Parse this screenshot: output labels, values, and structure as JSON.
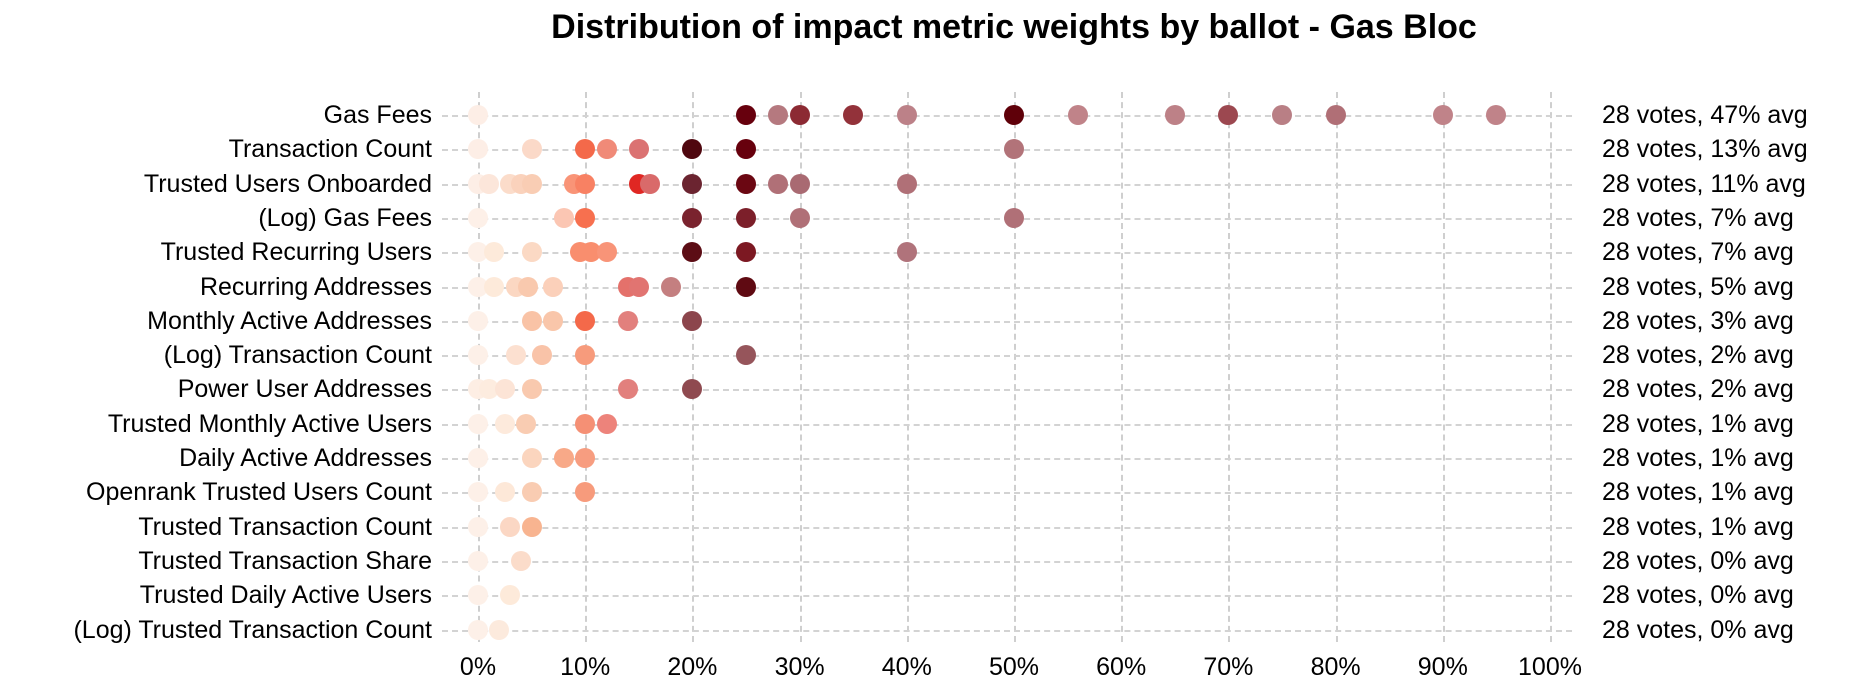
{
  "title": "Distribution of impact metric weights by ballot - Gas Bloc",
  "chart_data": {
    "type": "scatter",
    "variant": "dot-strip-plot",
    "title": "Distribution of impact metric weights by ballot - Gas Bloc",
    "xlabel": "",
    "ylabel": "",
    "x_axis": {
      "min": 0,
      "max": 100,
      "unit": "%",
      "ticks": [
        "0%",
        "10%",
        "20%",
        "30%",
        "40%",
        "50%",
        "60%",
        "70%",
        "80%",
        "90%",
        "100%"
      ]
    },
    "grid": true,
    "legend": false,
    "color_meaning": "darker red = more overlapping ballots / higher stacked weight",
    "rows": [
      {
        "label": "Gas Fees",
        "votes": 28,
        "avg_pct": 47,
        "annotation": "28 votes, 47% avg",
        "dots": [
          {
            "x": 0,
            "color": "#fdeee6"
          },
          {
            "x": 25,
            "color": "#67000d"
          },
          {
            "x": 28,
            "color": "#b5797f"
          },
          {
            "x": 30,
            "color": "#8c2a33"
          },
          {
            "x": 35,
            "color": "#93323a"
          },
          {
            "x": 40,
            "color": "#bc8188"
          },
          {
            "x": 50,
            "color": "#5f0009"
          },
          {
            "x": 56,
            "color": "#c08389"
          },
          {
            "x": 65,
            "color": "#bd8187"
          },
          {
            "x": 70,
            "color": "#9c4850"
          },
          {
            "x": 75,
            "color": "#b97f85"
          },
          {
            "x": 80,
            "color": "#b06f76"
          },
          {
            "x": 90,
            "color": "#c08389"
          },
          {
            "x": 95,
            "color": "#c08389"
          }
        ]
      },
      {
        "label": "Transaction Count",
        "votes": 28,
        "avg_pct": 13,
        "annotation": "28 votes, 13% avg",
        "dots": [
          {
            "x": 0,
            "color": "#fdeee6"
          },
          {
            "x": 5,
            "color": "#fbd9c8"
          },
          {
            "x": 10,
            "color": "#f4694a"
          },
          {
            "x": 12,
            "color": "#f08a78"
          },
          {
            "x": 15,
            "color": "#db7272"
          },
          {
            "x": 20,
            "color": "#4f070f"
          },
          {
            "x": 25,
            "color": "#67000d"
          },
          {
            "x": 50,
            "color": "#b27379"
          }
        ]
      },
      {
        "label": "Trusted Users Onboarded",
        "votes": 28,
        "avg_pct": 11,
        "annotation": "28 votes, 11% avg",
        "dots": [
          {
            "x": 0,
            "color": "#fdeee6"
          },
          {
            "x": 1,
            "color": "#fce6da"
          },
          {
            "x": 3,
            "color": "#fbdcca"
          },
          {
            "x": 4,
            "color": "#fad2bc"
          },
          {
            "x": 5,
            "color": "#f9cdb4"
          },
          {
            "x": 9,
            "color": "#f99477"
          },
          {
            "x": 10,
            "color": "#f88163"
          },
          {
            "x": 15,
            "color": "#e02723"
          },
          {
            "x": 16,
            "color": "#d96a6a"
          },
          {
            "x": 20,
            "color": "#6b2430"
          },
          {
            "x": 25,
            "color": "#6b0712"
          },
          {
            "x": 28,
            "color": "#b07077"
          },
          {
            "x": 30,
            "color": "#a96a72"
          },
          {
            "x": 40,
            "color": "#b07077"
          }
        ]
      },
      {
        "label": "(Log) Gas Fees",
        "votes": 28,
        "avg_pct": 7,
        "annotation": "28 votes, 7% avg",
        "dots": [
          {
            "x": 0,
            "color": "#fdf0e8"
          },
          {
            "x": 8,
            "color": "#fbc6b3"
          },
          {
            "x": 10,
            "color": "#f7704f"
          },
          {
            "x": 20,
            "color": "#7a232e"
          },
          {
            "x": 25,
            "color": "#7c1f2a"
          },
          {
            "x": 30,
            "color": "#b07077"
          },
          {
            "x": 50,
            "color": "#b07077"
          }
        ]
      },
      {
        "label": "Trusted Recurring Users",
        "votes": 28,
        "avg_pct": 7,
        "annotation": "28 votes, 7% avg",
        "dots": [
          {
            "x": 0,
            "color": "#fdf0e8"
          },
          {
            "x": 1.5,
            "color": "#fdeada"
          },
          {
            "x": 5,
            "color": "#fbd9c4"
          },
          {
            "x": 9.5,
            "color": "#f98e6e"
          },
          {
            "x": 10.5,
            "color": "#f98e6e"
          },
          {
            "x": 12,
            "color": "#f89478"
          },
          {
            "x": 20,
            "color": "#5c0d15"
          },
          {
            "x": 25,
            "color": "#7c1822"
          },
          {
            "x": 40,
            "color": "#b0737b"
          }
        ]
      },
      {
        "label": "Recurring Addresses",
        "votes": 28,
        "avg_pct": 5,
        "annotation": "28 votes, 5% avg",
        "dots": [
          {
            "x": 0,
            "color": "#fdf0e8"
          },
          {
            "x": 1.5,
            "color": "#fdeada"
          },
          {
            "x": 3.5,
            "color": "#fbd7c2"
          },
          {
            "x": 4.7,
            "color": "#f9c9ae"
          },
          {
            "x": 7,
            "color": "#fbd0ba"
          },
          {
            "x": 14,
            "color": "#e4716b"
          },
          {
            "x": 15,
            "color": "#e17471"
          },
          {
            "x": 18,
            "color": "#c47f80"
          },
          {
            "x": 25,
            "color": "#5f0a12"
          }
        ]
      },
      {
        "label": "Monthly Active Addresses",
        "votes": 28,
        "avg_pct": 3,
        "annotation": "28 votes, 3% avg",
        "dots": [
          {
            "x": 0,
            "color": "#fdf0e8"
          },
          {
            "x": 5,
            "color": "#f9c3a6"
          },
          {
            "x": 7,
            "color": "#f9c6aa"
          },
          {
            "x": 10,
            "color": "#f4694a"
          },
          {
            "x": 14,
            "color": "#e2807d"
          },
          {
            "x": 20,
            "color": "#8c454c"
          }
        ]
      },
      {
        "label": "(Log) Transaction Count",
        "votes": 28,
        "avg_pct": 2,
        "annotation": "28 votes, 2% avg",
        "dots": [
          {
            "x": 0,
            "color": "#fdf0e8"
          },
          {
            "x": 3.5,
            "color": "#fce0d0"
          },
          {
            "x": 6,
            "color": "#f9c3a8"
          },
          {
            "x": 10,
            "color": "#f79b7c"
          },
          {
            "x": 25,
            "color": "#96555b"
          }
        ]
      },
      {
        "label": "Power User Addresses",
        "votes": 28,
        "avg_pct": 2,
        "annotation": "28 votes, 2% avg",
        "dots": [
          {
            "x": 0,
            "color": "#fdeee4"
          },
          {
            "x": 1,
            "color": "#fdecdf"
          },
          {
            "x": 2.5,
            "color": "#fce4d6"
          },
          {
            "x": 5,
            "color": "#f9c9ae"
          },
          {
            "x": 14,
            "color": "#e2807d"
          },
          {
            "x": 20,
            "color": "#8f4a50"
          }
        ]
      },
      {
        "label": "Trusted Monthly Active Users",
        "votes": 28,
        "avg_pct": 1,
        "annotation": "28 votes, 1% avg",
        "dots": [
          {
            "x": 0,
            "color": "#fdf0e8"
          },
          {
            "x": 2.5,
            "color": "#fdeadc"
          },
          {
            "x": 4.5,
            "color": "#f9ccb2"
          },
          {
            "x": 10,
            "color": "#f59075"
          },
          {
            "x": 12,
            "color": "#ed837b"
          }
        ]
      },
      {
        "label": "Daily Active Addresses",
        "votes": 28,
        "avg_pct": 1,
        "annotation": "28 votes, 1% avg",
        "dots": [
          {
            "x": 0,
            "color": "#fdf0e8"
          },
          {
            "x": 5,
            "color": "#fbd5be"
          },
          {
            "x": 8,
            "color": "#f8a988"
          },
          {
            "x": 10,
            "color": "#f79d80"
          }
        ]
      },
      {
        "label": "Openrank Trusted Users Count",
        "votes": 28,
        "avg_pct": 1,
        "annotation": "28 votes, 1% avg",
        "dots": [
          {
            "x": 0,
            "color": "#fdf0e8"
          },
          {
            "x": 2.5,
            "color": "#fde8d8"
          },
          {
            "x": 5,
            "color": "#f9ccb2"
          },
          {
            "x": 10,
            "color": "#f79b7c"
          }
        ]
      },
      {
        "label": "Trusted Transaction Count",
        "votes": 28,
        "avg_pct": 1,
        "annotation": "28 votes, 1% avg",
        "dots": [
          {
            "x": 0,
            "color": "#fdf0e8"
          },
          {
            "x": 3,
            "color": "#fbd7c4"
          },
          {
            "x": 5,
            "color": "#f8b490"
          }
        ]
      },
      {
        "label": "Trusted Transaction Share",
        "votes": 28,
        "avg_pct": 0,
        "annotation": "28 votes, 0% avg",
        "dots": [
          {
            "x": 0,
            "color": "#fdf0e8"
          },
          {
            "x": 4,
            "color": "#fbdcca"
          }
        ]
      },
      {
        "label": "Trusted Daily Active Users",
        "votes": 28,
        "avg_pct": 0,
        "annotation": "28 votes, 0% avg",
        "dots": [
          {
            "x": 0,
            "color": "#fdf0e8"
          },
          {
            "x": 3,
            "color": "#fdeada"
          }
        ]
      },
      {
        "label": "(Log) Trusted Transaction Count",
        "votes": 28,
        "avg_pct": 0,
        "annotation": "28 votes, 0% avg",
        "dots": [
          {
            "x": 0,
            "color": "#fdf0e8"
          },
          {
            "x": 2,
            "color": "#fceadd"
          }
        ]
      }
    ]
  }
}
